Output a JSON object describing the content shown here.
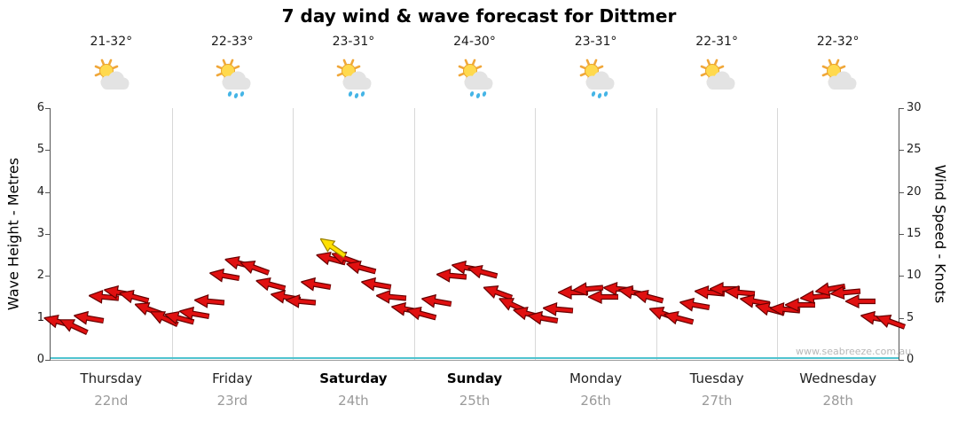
{
  "title": "7 day wind & wave forecast for Dittmer",
  "watermark": "www.seabreeze.com.au",
  "chart_data": {
    "type": "wind_wave_forecast",
    "title": "7 day wind & wave forecast for Dittmer",
    "left_axis": {
      "label": "Wave Height - Metres",
      "min": 0,
      "max": 6,
      "ticks": [
        0,
        1,
        2,
        3,
        4,
        5,
        6
      ]
    },
    "right_axis": {
      "label": "Wind Speed - Knots",
      "min": 0,
      "max": 30,
      "ticks": [
        0,
        5,
        10,
        15,
        20,
        25,
        30
      ]
    },
    "days": [
      {
        "name": "Thursday",
        "date": "22nd",
        "temp": "21-32°",
        "icon": "sun-cloud",
        "weekend": false
      },
      {
        "name": "Friday",
        "date": "23rd",
        "temp": "22-33°",
        "icon": "sun-cloud-rain",
        "weekend": false
      },
      {
        "name": "Saturday",
        "date": "24th",
        "temp": "23-31°",
        "icon": "sun-cloud-rain",
        "weekend": true
      },
      {
        "name": "Sunday",
        "date": "25th",
        "temp": "24-30°",
        "icon": "sun-cloud-rain",
        "weekend": true
      },
      {
        "name": "Monday",
        "date": "26th",
        "temp": "23-31°",
        "icon": "sun-cloud-rain",
        "weekend": false
      },
      {
        "name": "Tuesday",
        "date": "27th",
        "temp": "22-31°",
        "icon": "sun-cloud",
        "weekend": false
      },
      {
        "name": "Wednesday",
        "date": "28th",
        "temp": "22-32°",
        "icon": "sun-cloud",
        "weekend": false
      }
    ],
    "points_per_day": 8,
    "wind_speed_knots": [
      4.5,
      4,
      5,
      7.5,
      8,
      7.5,
      6,
      5,
      5,
      5.5,
      7,
      10,
      11.5,
      11,
      9,
      7.5,
      7,
      9,
      12,
      12,
      11,
      9,
      7.5,
      6,
      5.5,
      7,
      10,
      11,
      10.5,
      8,
      6.5,
      5.5,
      5,
      6,
      8,
      8.5,
      7.5,
      8.5,
      8,
      7.5,
      5.5,
      5,
      6.5,
      8,
      8.5,
      8,
      7,
      6,
      6,
      6.5,
      7.5,
      8.5,
      8,
      7,
      5,
      4.5
    ],
    "wind_dir_deg": [
      195,
      205,
      190,
      185,
      190,
      195,
      200,
      205,
      195,
      190,
      185,
      190,
      195,
      200,
      195,
      190,
      185,
      190,
      195,
      200,
      195,
      190,
      185,
      190,
      195,
      190,
      185,
      190,
      195,
      200,
      205,
      195,
      190,
      185,
      180,
      175,
      180,
      185,
      190,
      195,
      200,
      195,
      190,
      185,
      180,
      185,
      190,
      195,
      185,
      180,
      175,
      170,
      175,
      180,
      190,
      200
    ],
    "wave_height_metres": 0.05,
    "gust_marker": {
      "day_index": 2,
      "knots": 12.6,
      "dir_deg": 215
    },
    "colors": {
      "wind_arrow": "#e01010",
      "wind_arrow_outline": "#660000",
      "gust_arrow": "#ffe000",
      "gust_arrow_outline": "#9a8000",
      "wave_line": "#4fc3cf",
      "gridline": "#d8d8d8"
    }
  }
}
